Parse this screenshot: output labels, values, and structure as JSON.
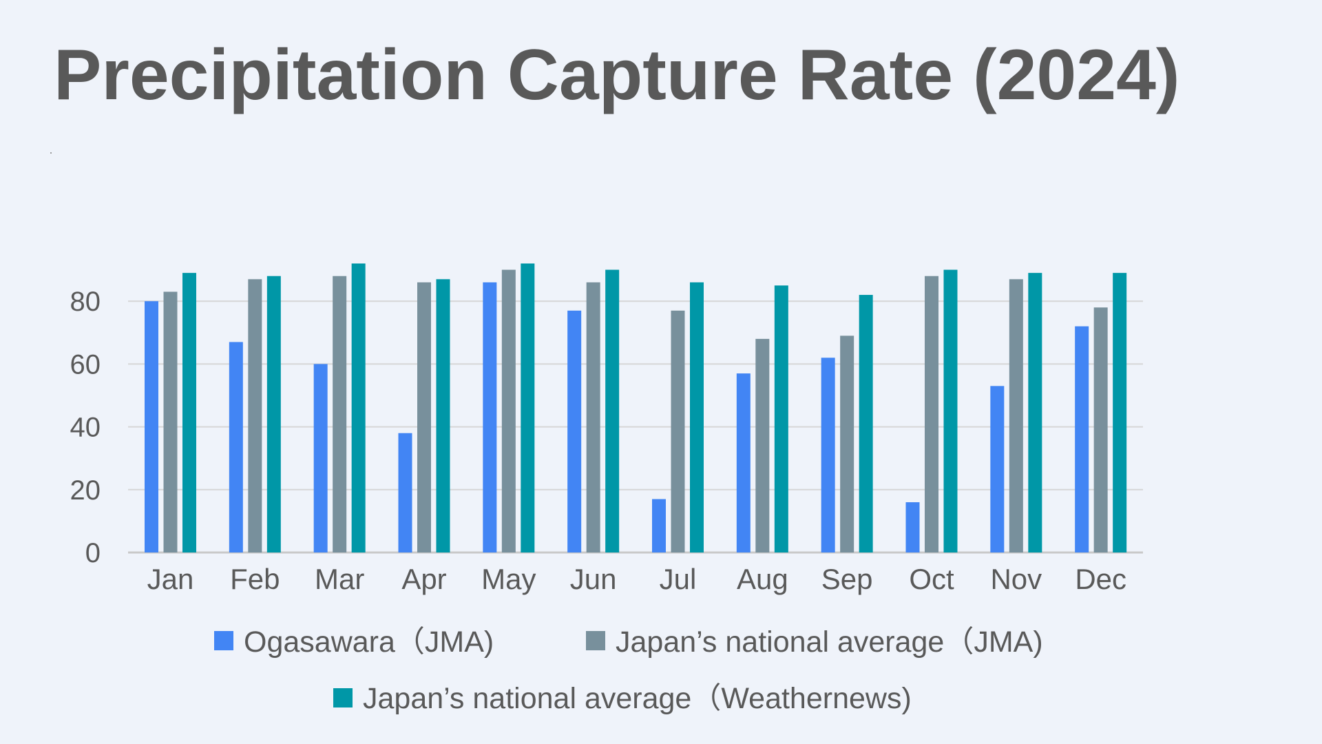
{
  "chart_data": {
    "type": "bar",
    "title": "Precipitation Capture Rate (2024)",
    "xlabel": "",
    "ylabel": "",
    "ylim": [
      0,
      92
    ],
    "yticks": [
      0,
      20,
      40,
      60,
      80
    ],
    "grid": true,
    "legend_position": "bottom",
    "categories": [
      "Jan",
      "Feb",
      "Mar",
      "Apr",
      "May",
      "Jun",
      "Jul",
      "Aug",
      "Sep",
      "Oct",
      "Nov",
      "Dec"
    ],
    "series": [
      {
        "name": "Ogasawara（JMA)",
        "color": "#4285f4",
        "values": [
          80,
          67,
          60,
          38,
          86,
          77,
          17,
          57,
          62,
          16,
          53,
          72
        ]
      },
      {
        "name": "Japan’s national average（JMA)",
        "color": "#78909c",
        "values": [
          83,
          87,
          88,
          86,
          90,
          86,
          77,
          68,
          69,
          88,
          87,
          78
        ]
      },
      {
        "name": "Japan’s national average（Weathernews)",
        "color": "#0097a7",
        "values": [
          89,
          88,
          92,
          87,
          92,
          90,
          86,
          85,
          82,
          90,
          89,
          89
        ]
      }
    ]
  }
}
